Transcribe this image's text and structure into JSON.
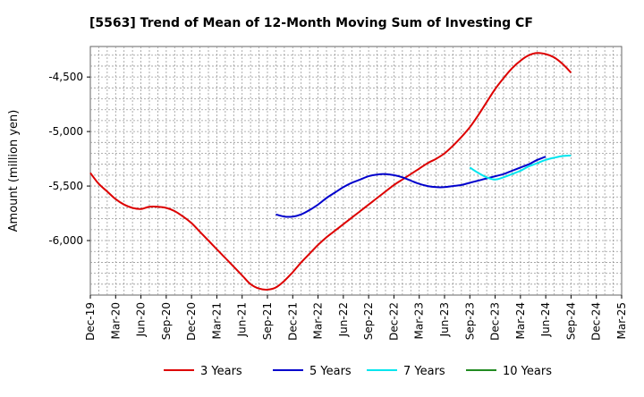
{
  "chart_data": {
    "type": "line",
    "title": "[5563]  Trend of Mean of 12-Month Moving Sum of Investing CF",
    "xlabel": "",
    "ylabel": "Amount (million yen)",
    "ylim": [
      -6500,
      -4220
    ],
    "x_ticks": [
      "Dec-19",
      "Mar-20",
      "Jun-20",
      "Sep-20",
      "Dec-20",
      "Mar-21",
      "Jun-21",
      "Sep-21",
      "Dec-21",
      "Mar-22",
      "Jun-22",
      "Sep-22",
      "Dec-22",
      "Mar-23",
      "Jun-23",
      "Sep-23",
      "Dec-23",
      "Mar-24",
      "Jun-24",
      "Sep-24",
      "Dec-24",
      "Mar-25"
    ],
    "y_ticks": [
      -4500,
      -5000,
      -5500,
      -6000
    ],
    "y_tick_labels": [
      "-4,500",
      "-5,000",
      "-5,500",
      "-6,000"
    ],
    "legend": [
      "3 Years",
      "5 Years",
      "7 Years",
      "10 Years"
    ],
    "series": [
      {
        "name": "3 Years",
        "color": "#dd0000",
        "start_index": 0,
        "values": [
          -5380,
          -5480,
          -5550,
          -5620,
          -5670,
          -5700,
          -5710,
          -5690,
          -5690,
          -5700,
          -5730,
          -5780,
          -5840,
          -5920,
          -6000,
          -6080,
          -6160,
          -6240,
          -6320,
          -6400,
          -6440,
          -6450,
          -6430,
          -6370,
          -6290,
          -6200,
          -6120,
          -6040,
          -5970,
          -5910,
          -5850,
          -5790,
          -5730,
          -5670,
          -5610,
          -5550,
          -5490,
          -5440,
          -5390,
          -5340,
          -5290,
          -5250,
          -5200,
          -5130,
          -5050,
          -4960,
          -4850,
          -4730,
          -4610,
          -4510,
          -4420,
          -4350,
          -4300,
          -4280,
          -4290,
          -4320,
          -4380,
          -4460
        ]
      },
      {
        "name": "5 Years",
        "color": "#0000cc",
        "start_index": 22,
        "values": [
          -5760,
          -5780,
          -5780,
          -5760,
          -5720,
          -5670,
          -5610,
          -5560,
          -5510,
          -5470,
          -5440,
          -5410,
          -5395,
          -5390,
          -5400,
          -5420,
          -5450,
          -5480,
          -5500,
          -5510,
          -5510,
          -5500,
          -5490,
          -5470,
          -5450,
          -5430,
          -5410,
          -5390,
          -5360,
          -5330,
          -5300,
          -5260,
          -5230
        ]
      },
      {
        "name": "7 Years",
        "color": "#00e5ee",
        "start_index": 45,
        "values": [
          -5330,
          -5380,
          -5420,
          -5440,
          -5420,
          -5390,
          -5360,
          -5320,
          -5290,
          -5260,
          -5240,
          -5225,
          -5220
        ]
      },
      {
        "name": "10 Years",
        "color": "#228b22",
        "start_index": null,
        "values": []
      }
    ]
  }
}
